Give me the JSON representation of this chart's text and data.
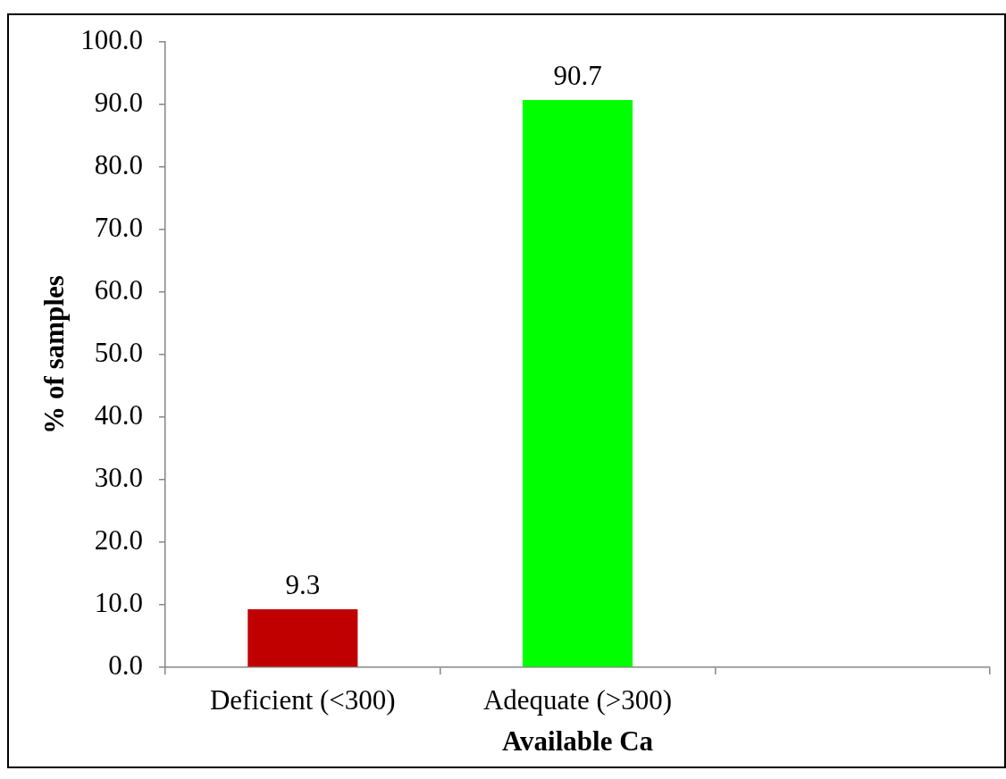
{
  "chart_data": {
    "type": "bar",
    "xlabel": "Available Ca",
    "ylabel": "% of samples",
    "categories": [
      "Deficient (<300)",
      "Adequate (>300)",
      null
    ],
    "values": [
      9.3,
      90.7,
      null
    ],
    "colors": [
      "#c00000",
      "#00ff00",
      null
    ],
    "ylim": [
      0,
      100
    ],
    "yticks": [
      {
        "value": 0,
        "label": "0.0"
      },
      {
        "value": 10,
        "label": "10.0"
      },
      {
        "value": 20,
        "label": "20.0"
      },
      {
        "value": 30,
        "label": "30.0"
      },
      {
        "value": 40,
        "label": "40.0"
      },
      {
        "value": 50,
        "label": "50.0"
      },
      {
        "value": 60,
        "label": "60.0"
      },
      {
        "value": 70,
        "label": "70.0"
      },
      {
        "value": 80,
        "label": "80.0"
      },
      {
        "value": 90,
        "label": "90.0"
      },
      {
        "value": 100,
        "label": "100.0"
      }
    ],
    "data_labels": true
  }
}
